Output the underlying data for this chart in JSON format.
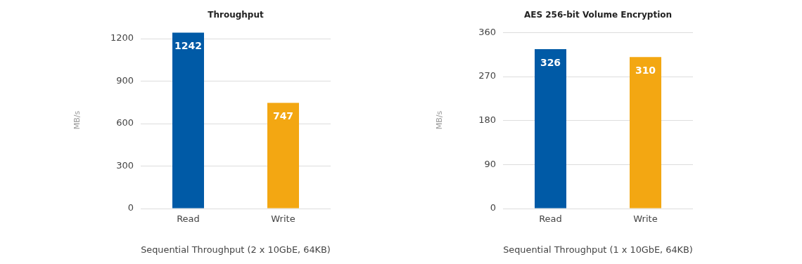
{
  "chart_data": [
    {
      "type": "bar",
      "title": "Throughput",
      "xlabel": "Sequential Throughput (2 x 10GbE, 64KB)",
      "ylabel": "MB/s",
      "categories": [
        "Read",
        "Write"
      ],
      "values": [
        1242,
        747
      ],
      "colors": [
        "#005aa6",
        "#f3a712"
      ],
      "ylim": [
        0,
        1250
      ],
      "yticks": [
        0,
        300,
        600,
        900,
        1200
      ],
      "grid": "y",
      "data_labels": true
    },
    {
      "type": "bar",
      "title": "AES 256-bit Volume Encryption",
      "xlabel": "Sequential Throughput (1 x 10GbE, 64KB)",
      "ylabel": "MB/s",
      "categories": [
        "Read",
        "Write"
      ],
      "values": [
        326,
        310
      ],
      "colors": [
        "#005aa6",
        "#f3a712"
      ],
      "ylim": [
        0,
        362
      ],
      "yticks": [
        0,
        90,
        180,
        270,
        360
      ],
      "grid": "y",
      "data_labels": true
    }
  ]
}
